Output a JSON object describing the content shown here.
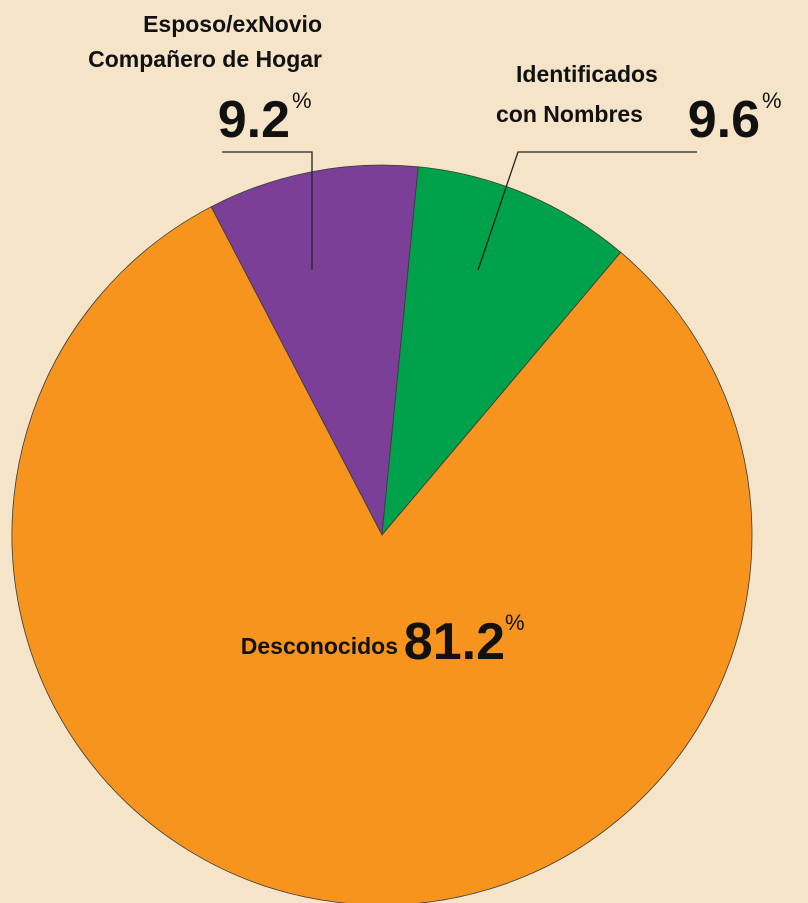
{
  "chart_data": {
    "type": "pie",
    "categories": [
      [
        "Esposo/exNovio",
        "Compañero de Hogar"
      ],
      [
        "Identificados",
        "con Nombres"
      ],
      [
        "Desconocidos"
      ]
    ],
    "values": [
      9.2,
      9.6,
      81.2
    ],
    "unit": "%",
    "colors": [
      "#7b3f98",
      "#00a14b",
      "#f7941d"
    ]
  }
}
